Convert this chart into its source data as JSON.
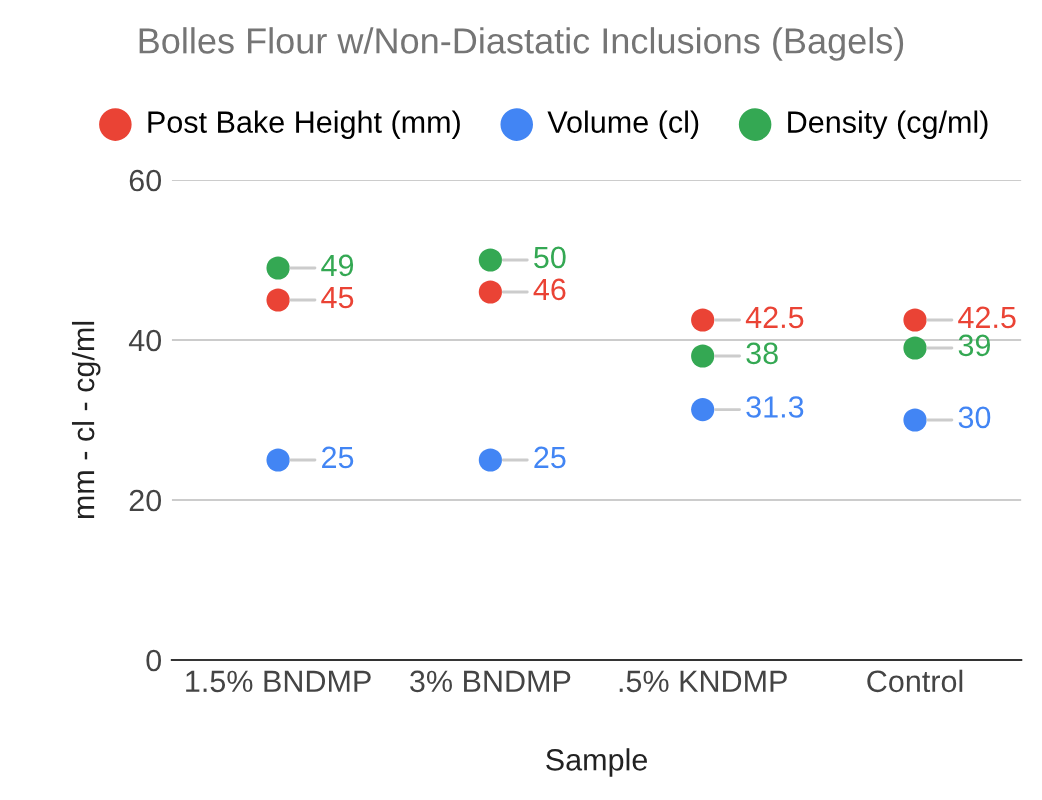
{
  "chart_data": {
    "type": "scatter",
    "title": "Bolles Flour w/Non-Diastatic Inclusions (Bagels)",
    "xlabel": "Sample",
    "ylabel": "mm - cl - cg/ml",
    "categories": [
      "1.5% BNDMP",
      "3% BNDMP",
      ".5% KNDMP",
      "Control"
    ],
    "series": [
      {
        "name": "Post Bake Height (mm)",
        "color": "#ea4335",
        "values": [
          45,
          46,
          42.5,
          42.5
        ]
      },
      {
        "name": "Volume (cl)",
        "color": "#4285f4",
        "values": [
          25,
          25,
          31.3,
          30
        ]
      },
      {
        "name": "Density (cg/ml)",
        "color": "#34a853",
        "values": [
          49,
          50,
          38,
          39
        ]
      }
    ],
    "ylim": [
      0,
      60
    ],
    "yticks": [
      0,
      20,
      40,
      60
    ],
    "grid": "y",
    "legend": "top",
    "marker": "circle",
    "data_labels": true
  }
}
